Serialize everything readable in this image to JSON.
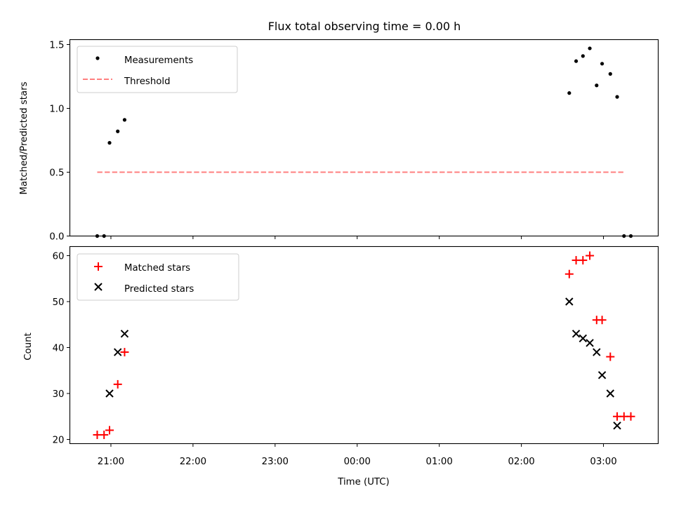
{
  "chart_data": [
    {
      "type": "scatter",
      "title": "Flux total observing time = 0.00 h",
      "xlabel": "",
      "ylabel": "Matched/Predicted stars",
      "xlim": [
        "20:30",
        "03:40"
      ],
      "ylim": [
        0,
        1.5
      ],
      "yticks": [
        "0.0",
        "0.5",
        "1.0",
        "1.5"
      ],
      "legend_position": "top-left",
      "series": [
        {
          "name": "Measurements",
          "kind": "dots",
          "color": "#000000",
          "points": [
            {
              "x": "20:50",
              "y": 0.0
            },
            {
              "x": "20:55",
              "y": 0.0
            },
            {
              "x": "20:59",
              "y": 0.73
            },
            {
              "x": "21:05",
              "y": 0.82
            },
            {
              "x": "21:10",
              "y": 0.91
            },
            {
              "x": "02:35",
              "y": 1.12
            },
            {
              "x": "02:40",
              "y": 1.37
            },
            {
              "x": "02:45",
              "y": 1.41
            },
            {
              "x": "02:50",
              "y": 1.47
            },
            {
              "x": "02:55",
              "y": 1.18
            },
            {
              "x": "02:59",
              "y": 1.35
            },
            {
              "x": "03:05",
              "y": 1.27
            },
            {
              "x": "03:10",
              "y": 1.09
            },
            {
              "x": "03:15",
              "y": 0.0
            },
            {
              "x": "03:20",
              "y": 0.0
            }
          ]
        },
        {
          "name": "Threshold",
          "kind": "dashed-line",
          "color": "#ff7f7f",
          "points": [
            {
              "x": "20:50",
              "y": 0.5
            },
            {
              "x": "03:15",
              "y": 0.5
            }
          ]
        }
      ]
    },
    {
      "type": "scatter",
      "title": "",
      "xlabel": "Time (UTC)",
      "ylabel": "Count",
      "xlim": [
        "20:30",
        "03:40"
      ],
      "ylim": [
        19,
        62
      ],
      "yticks": [
        "20",
        "30",
        "40",
        "50",
        "60"
      ],
      "xticks": [
        "21:00",
        "22:00",
        "23:00",
        "00:00",
        "01:00",
        "02:00",
        "03:00"
      ],
      "legend_position": "top-left",
      "series": [
        {
          "name": "Matched stars",
          "kind": "plus",
          "color": "#ff0000",
          "points": [
            {
              "x": "20:50",
              "y": 21
            },
            {
              "x": "20:55",
              "y": 21
            },
            {
              "x": "20:59",
              "y": 22
            },
            {
              "x": "21:05",
              "y": 32
            },
            {
              "x": "21:10",
              "y": 39
            },
            {
              "x": "02:35",
              "y": 56
            },
            {
              "x": "02:40",
              "y": 59
            },
            {
              "x": "02:45",
              "y": 59
            },
            {
              "x": "02:50",
              "y": 60
            },
            {
              "x": "02:55",
              "y": 46
            },
            {
              "x": "02:59",
              "y": 46
            },
            {
              "x": "03:05",
              "y": 38
            },
            {
              "x": "03:10",
              "y": 25
            },
            {
              "x": "03:15",
              "y": 25
            },
            {
              "x": "03:20",
              "y": 25
            }
          ]
        },
        {
          "name": "Predicted stars",
          "kind": "cross",
          "color": "#000000",
          "points": [
            {
              "x": "20:59",
              "y": 30
            },
            {
              "x": "21:05",
              "y": 39
            },
            {
              "x": "21:10",
              "y": 43
            },
            {
              "x": "02:35",
              "y": 50
            },
            {
              "x": "02:40",
              "y": 43
            },
            {
              "x": "02:45",
              "y": 42
            },
            {
              "x": "02:50",
              "y": 41
            },
            {
              "x": "02:55",
              "y": 39
            },
            {
              "x": "02:59",
              "y": 34
            },
            {
              "x": "03:05",
              "y": 30
            },
            {
              "x": "03:10",
              "y": 23
            }
          ]
        }
      ]
    }
  ]
}
